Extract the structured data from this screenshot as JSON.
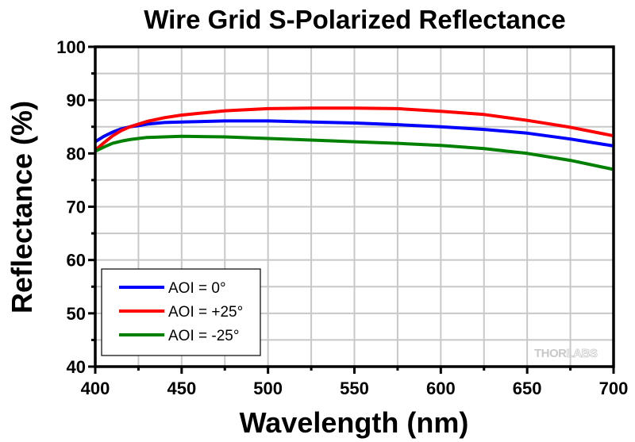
{
  "chart_data": {
    "type": "line",
    "title": "Wire Grid S-Polarized Reflectance",
    "xlabel": "Wavelength (nm)",
    "ylabel": "Reflectance (%)",
    "xlim": [
      400,
      700
    ],
    "ylim": [
      40,
      100
    ],
    "xticks": [
      400,
      450,
      500,
      550,
      600,
      650,
      700
    ],
    "yticks": [
      40,
      50,
      60,
      70,
      80,
      90,
      100
    ],
    "xtick_labels": [
      "400",
      "450",
      "500",
      "550",
      "600",
      "650",
      "700"
    ],
    "ytick_labels": [
      "40",
      "50",
      "60",
      "70",
      "80",
      "90",
      "100"
    ],
    "grid": true,
    "legend_position": "bottom-left",
    "watermark": {
      "brand": "THOR",
      "brand2": "LABS"
    },
    "x": [
      400,
      405,
      410,
      415,
      420,
      425,
      430,
      440,
      450,
      475,
      500,
      525,
      550,
      575,
      600,
      625,
      650,
      675,
      700
    ],
    "series": [
      {
        "name": "AOI = 0°",
        "color": "#0000ff",
        "values": [
          82.2,
          83.2,
          84.0,
          84.6,
          85.0,
          85.2,
          85.5,
          85.8,
          85.9,
          86.1,
          86.1,
          85.9,
          85.7,
          85.4,
          85.0,
          84.5,
          83.8,
          82.7,
          81.4
        ]
      },
      {
        "name": "AOI = +25°",
        "color": "#ff0000",
        "values": [
          80.6,
          82.0,
          83.3,
          84.3,
          85.0,
          85.5,
          86.0,
          86.7,
          87.2,
          88.0,
          88.4,
          88.5,
          88.5,
          88.4,
          87.9,
          87.3,
          86.2,
          84.9,
          83.3
        ]
      },
      {
        "name": "AOI = -25°",
        "color": "#008000",
        "values": [
          80.4,
          81.2,
          81.9,
          82.3,
          82.6,
          82.8,
          83.0,
          83.1,
          83.2,
          83.1,
          82.8,
          82.5,
          82.2,
          81.9,
          81.5,
          80.9,
          80.0,
          78.7,
          77.0
        ]
      }
    ]
  }
}
